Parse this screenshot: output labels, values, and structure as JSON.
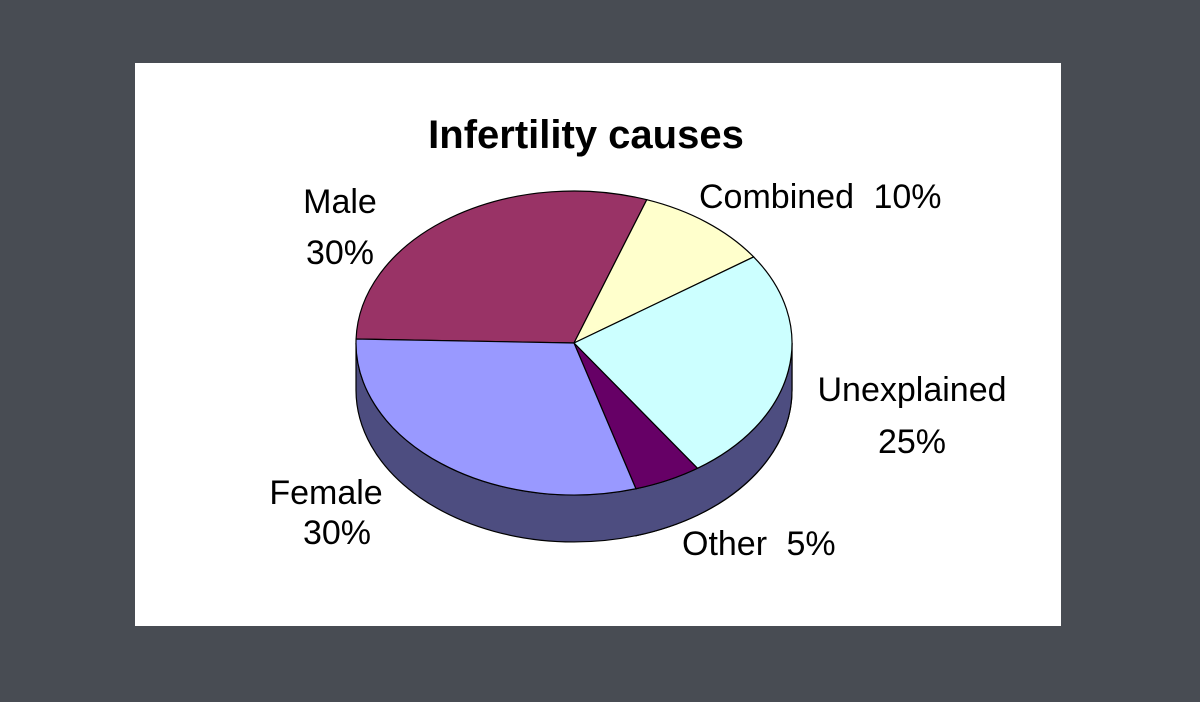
{
  "chart_data": {
    "type": "pie",
    "three_d": true,
    "title": "Infertility causes",
    "slices": [
      {
        "name": "Male",
        "value": 30,
        "pct_label": "30%",
        "color": "#993366",
        "side_color": "#6b2347"
      },
      {
        "name": "Combined",
        "value": 10,
        "pct_label": "10%",
        "color": "#ffffcc",
        "side_color": "#b2b28e"
      },
      {
        "name": "Unexplained",
        "value": 25,
        "pct_label": "25%",
        "color": "#ccffff",
        "side_color": "#668080"
      },
      {
        "name": "Other",
        "value": 5,
        "pct_label": "5%",
        "color": "#660066",
        "side_color": "#330033"
      },
      {
        "name": "Female",
        "value": 30,
        "pct_label": "30%",
        "color": "#9999ff",
        "side_color": "#4d4d80"
      }
    ]
  },
  "colors": {
    "page_background": "#484c53",
    "panel_background": "#ffffff",
    "outline": "#000000"
  }
}
